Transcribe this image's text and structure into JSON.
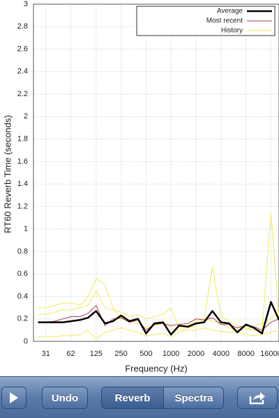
{
  "chart_data": {
    "type": "line",
    "y_label": "RT60 Reverb Time (seconds)",
    "x_label": "Frequency (Hz)",
    "x": [
      25,
      31.5,
      40,
      50,
      63,
      80,
      100,
      125,
      160,
      200,
      250,
      315,
      400,
      500,
      630,
      800,
      1000,
      1250,
      1600,
      2000,
      2500,
      3150,
      4000,
      5000,
      6300,
      8000,
      10000,
      12500,
      16000,
      20000
    ],
    "xlim": [
      22,
      20000
    ],
    "xscale": "log",
    "xticks": [
      31,
      62,
      125,
      250,
      500,
      1000,
      2000,
      4000,
      8000,
      16000
    ],
    "ylim": [
      0,
      3
    ],
    "yticks": [
      0,
      0.2,
      0.4,
      0.6,
      0.8,
      1,
      1.2,
      1.4,
      1.6,
      1.8,
      2,
      2.2,
      2.4,
      2.6,
      2.8,
      3
    ],
    "grid": true,
    "legend": "top-right",
    "series": [
      {
        "name": "Average",
        "color": "#000000",
        "width": 2.5,
        "values": [
          0.17,
          0.17,
          0.17,
          0.17,
          0.18,
          0.19,
          0.21,
          0.27,
          0.16,
          0.18,
          0.23,
          0.18,
          0.2,
          0.07,
          0.16,
          0.17,
          0.06,
          0.14,
          0.13,
          0.16,
          0.17,
          0.27,
          0.17,
          0.16,
          0.08,
          0.15,
          0.12,
          0.07,
          0.35,
          0.19
        ]
      },
      {
        "name": "Most recent",
        "color": "#b03a4a",
        "width": 1,
        "values": [
          0.17,
          0.17,
          0.18,
          0.2,
          0.22,
          0.22,
          0.25,
          0.32,
          0.14,
          0.2,
          0.21,
          0.17,
          0.19,
          0.1,
          0.15,
          0.16,
          0.14,
          0.15,
          0.16,
          0.2,
          0.19,
          0.21,
          0.15,
          0.15,
          0.12,
          0.14,
          0.13,
          0.1,
          0.17,
          0.2
        ]
      },
      {
        "name": "History",
        "color": "#f5ee7a",
        "width": 1.3,
        "runs": [
          [
            0.3,
            0.3,
            0.32,
            0.34,
            0.34,
            0.32,
            0.4,
            0.56,
            0.5,
            0.3,
            0.2,
            0.18,
            0.16,
            0.12,
            0.14,
            0.16,
            0.12,
            0.1,
            0.12,
            0.14,
            0.2,
            0.66,
            0.22,
            0.18,
            0.14,
            0.12,
            0.1,
            0.1,
            1.14,
            0.2
          ],
          [
            0.24,
            0.24,
            0.26,
            0.28,
            0.28,
            0.3,
            0.32,
            0.45,
            0.3,
            0.28,
            0.26,
            0.22,
            0.24,
            0.2,
            0.22,
            0.24,
            0.3,
            0.12,
            0.14,
            0.18,
            0.2,
            0.18,
            0.16,
            0.12,
            0.1,
            0.1,
            0.14,
            0.16,
            0.2,
            0.3
          ],
          [
            0.04,
            0.04,
            0.04,
            0.05,
            0.05,
            0.06,
            0.1,
            0.02,
            0.08,
            0.1,
            0.12,
            0.1,
            0.08,
            0.05,
            0.06,
            0.07,
            0.04,
            0.08,
            0.1,
            0.1,
            0.12,
            0.1,
            0.09,
            0.08,
            0.08,
            0.06,
            0.05,
            0.06,
            0.08,
            0.1
          ]
        ]
      }
    ]
  },
  "toolbar": {
    "undo": "Undo",
    "segments": [
      "Reverb",
      "Spectra"
    ],
    "selected": 0
  }
}
